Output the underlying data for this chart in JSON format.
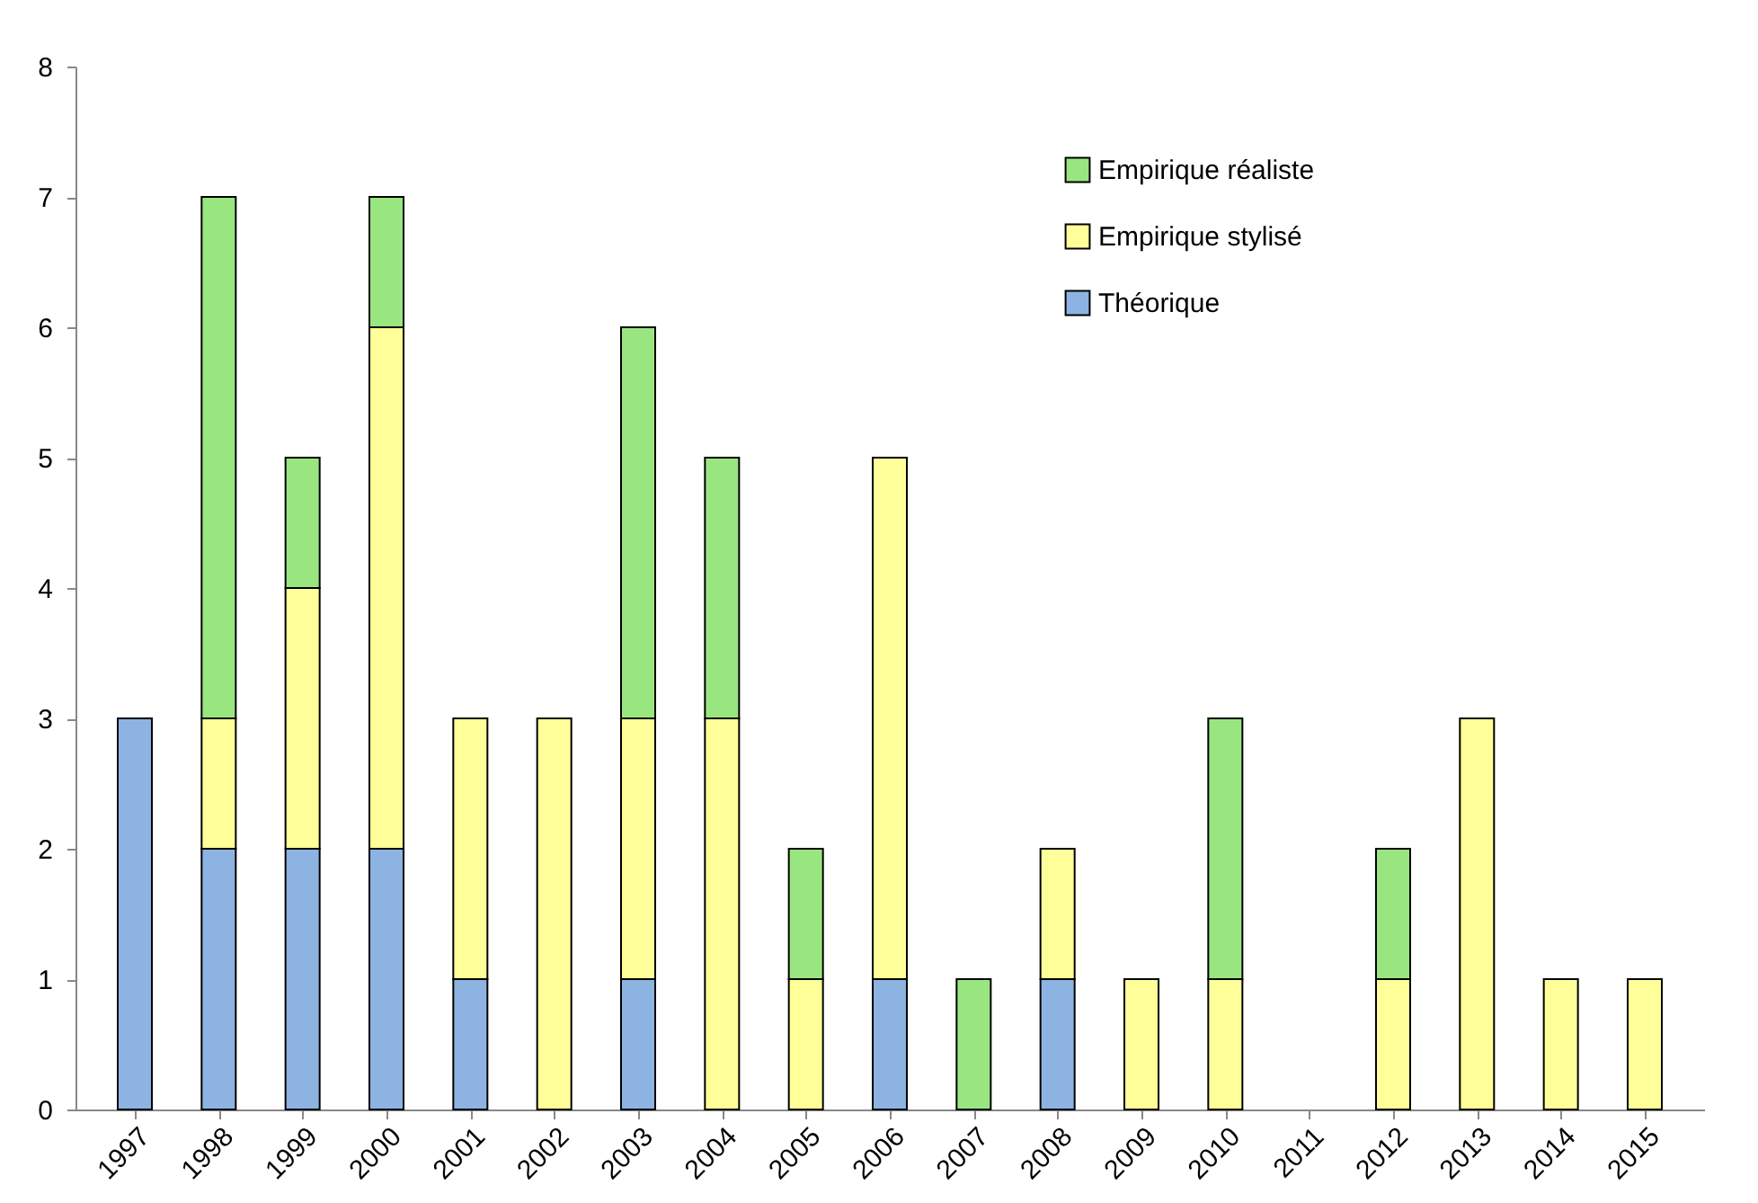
{
  "chart_data": {
    "type": "bar",
    "stacked": true,
    "categories": [
      "1997",
      "1998",
      "1999",
      "2000",
      "2001",
      "2002",
      "2003",
      "2004",
      "2005",
      "2006",
      "2007",
      "2008",
      "2009",
      "2010",
      "2011",
      "2012",
      "2013",
      "2014",
      "2015"
    ],
    "series": [
      {
        "name": "Théorique",
        "color": "#8db3e2",
        "values": [
          3,
          2,
          2,
          2,
          1,
          0,
          1,
          0,
          0,
          1,
          0,
          1,
          0,
          0,
          0,
          0,
          0,
          0,
          0
        ]
      },
      {
        "name": "Empirique stylisé",
        "color": "#ffff99",
        "values": [
          0,
          1,
          2,
          4,
          2,
          3,
          2,
          3,
          1,
          4,
          0,
          1,
          1,
          1,
          0,
          1,
          3,
          1,
          1
        ]
      },
      {
        "name": "Empirique réaliste",
        "color": "#99e680",
        "values": [
          0,
          4,
          1,
          1,
          0,
          0,
          3,
          2,
          1,
          0,
          1,
          0,
          0,
          2,
          0,
          1,
          0,
          0,
          0
        ]
      }
    ],
    "ylim": [
      0,
      8
    ],
    "yticks": [
      0,
      1,
      2,
      3,
      4,
      5,
      6,
      7,
      8
    ],
    "grid": false,
    "legend": "top right"
  }
}
